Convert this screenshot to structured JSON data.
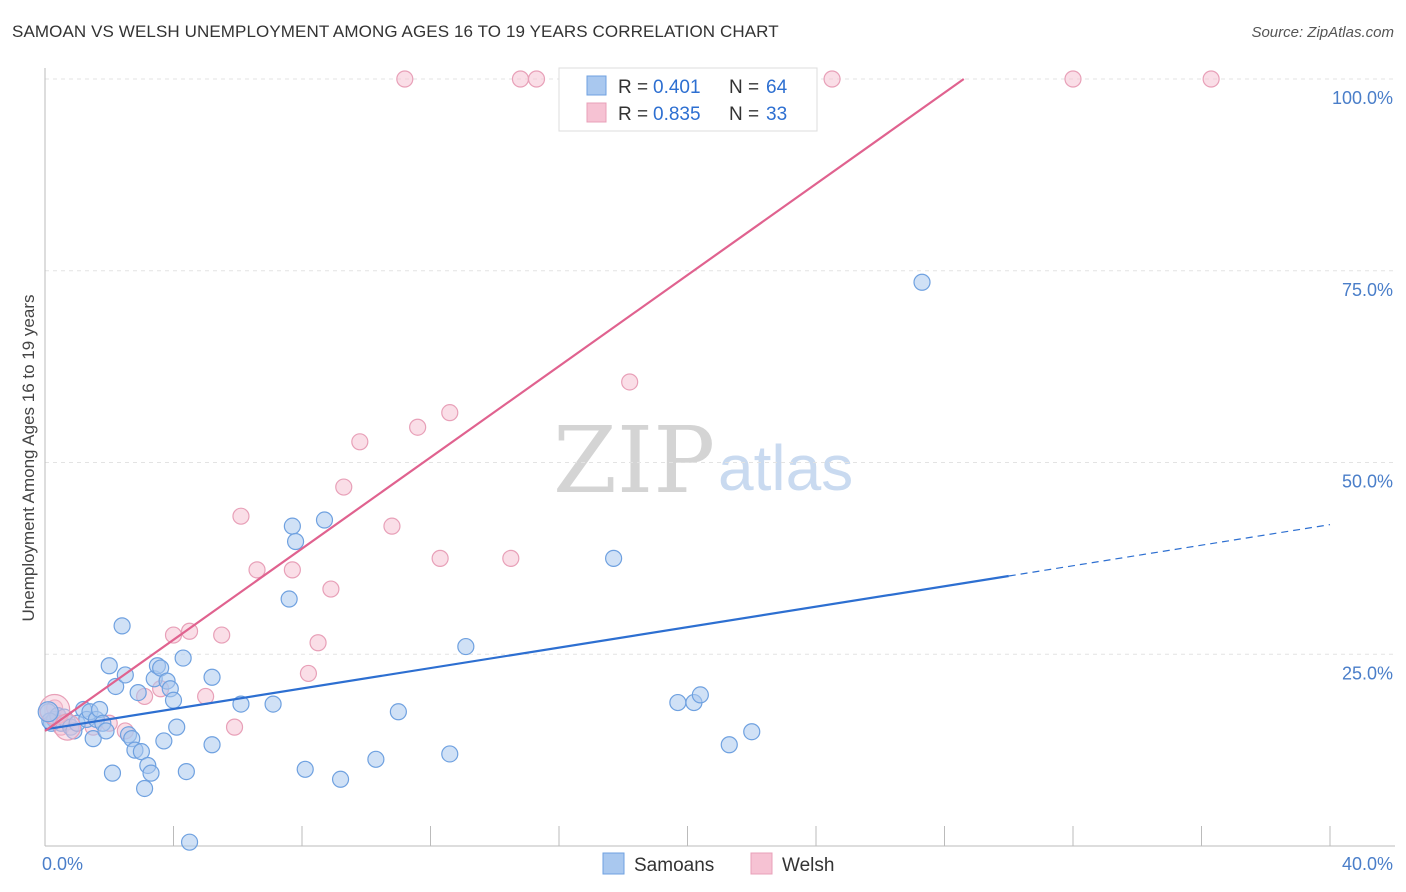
{
  "title": "SAMOAN VS WELSH UNEMPLOYMENT AMONG AGES 16 TO 19 YEARS CORRELATION CHART",
  "source": "Source: ZipAtlas.com",
  "watermark": {
    "zip": "ZIP",
    "atlas": "atlas"
  },
  "chart_data": {
    "type": "scatter",
    "xlabel": "",
    "ylabel": "Unemployment Among Ages 16 to 19 years",
    "xlim": [
      0,
      40
    ],
    "ylim": [
      0,
      100
    ],
    "x_tick_labels": [
      {
        "value": 0,
        "label": "0.0%"
      },
      {
        "value": 40,
        "label": "40.0%"
      }
    ],
    "y_tick_labels": [
      {
        "value": 25,
        "label": "25.0%"
      },
      {
        "value": 50,
        "label": "50.0%"
      },
      {
        "value": 75,
        "label": "75.0%"
      },
      {
        "value": 100,
        "label": "100.0%"
      }
    ],
    "legend_stats": [
      {
        "r_label": "R =",
        "r_value": "0.401",
        "n_label": "N =",
        "n_value": "64"
      },
      {
        "r_label": "R =",
        "r_value": "0.835",
        "n_label": "N =",
        "n_value": "33"
      }
    ],
    "series": [
      {
        "name": "Samoans",
        "color": "#6fa1e0",
        "fill": "#a9c8ef",
        "line_color": "#2d6fd1",
        "trend": {
          "x0": 0,
          "y0": 15.2,
          "x1": 30.0,
          "y1": 35.2,
          "dash_to_x": 40,
          "dash_to_y": 41.9
        },
        "points": [
          [
            0.1,
            17.5
          ],
          [
            0.2,
            16.0
          ],
          [
            0.3,
            16.5
          ],
          [
            0.4,
            17.0
          ],
          [
            0.5,
            16.0
          ],
          [
            0.6,
            16.8
          ],
          [
            0.7,
            16.2
          ],
          [
            0.8,
            15.5
          ],
          [
            0.9,
            15.0
          ],
          [
            1.0,
            16.0
          ],
          [
            1.2,
            17.8
          ],
          [
            1.3,
            16.5
          ],
          [
            1.4,
            17.5
          ],
          [
            1.5,
            14.0
          ],
          [
            1.6,
            16.5
          ],
          [
            1.7,
            17.8
          ],
          [
            1.8,
            16.0
          ],
          [
            1.9,
            15.0
          ],
          [
            2.0,
            23.5
          ],
          [
            2.1,
            9.5
          ],
          [
            2.2,
            20.8
          ],
          [
            2.4,
            28.7
          ],
          [
            2.5,
            22.3
          ],
          [
            2.6,
            14.5
          ],
          [
            2.7,
            14.0
          ],
          [
            2.8,
            12.5
          ],
          [
            2.9,
            20.0
          ],
          [
            3.0,
            12.3
          ],
          [
            3.1,
            7.5
          ],
          [
            3.2,
            10.5
          ],
          [
            3.3,
            9.5
          ],
          [
            3.4,
            21.8
          ],
          [
            3.5,
            23.5
          ],
          [
            3.6,
            23.2
          ],
          [
            3.7,
            13.7
          ],
          [
            3.8,
            21.5
          ],
          [
            3.9,
            20.5
          ],
          [
            4.0,
            19.0
          ],
          [
            4.1,
            15.5
          ],
          [
            4.3,
            24.5
          ],
          [
            4.4,
            9.7
          ],
          [
            4.5,
            0.5
          ],
          [
            5.2,
            13.2
          ],
          [
            5.2,
            22.0
          ],
          [
            6.1,
            18.5
          ],
          [
            7.1,
            18.5
          ],
          [
            7.6,
            32.2
          ],
          [
            7.7,
            41.7
          ],
          [
            7.8,
            39.7
          ],
          [
            8.1,
            10.0
          ],
          [
            8.7,
            42.5
          ],
          [
            9.2,
            8.7
          ],
          [
            10.3,
            11.3
          ],
          [
            11.0,
            17.5
          ],
          [
            12.6,
            12.0
          ],
          [
            13.1,
            26.0
          ],
          [
            17.7,
            37.5
          ],
          [
            19.7,
            18.7
          ],
          [
            20.2,
            18.7
          ],
          [
            20.4,
            19.7
          ],
          [
            21.3,
            13.2
          ],
          [
            22.0,
            14.9
          ],
          [
            27.3,
            73.5
          ],
          [
            0.15,
            16.3
          ]
        ]
      },
      {
        "name": "Welsh",
        "color": "#e8a0b8",
        "fill": "#f6c2d3",
        "line_color": "#e0628f",
        "trend": {
          "x0": 0,
          "y0": 15.0,
          "x1": 28.6,
          "y1": 100.0
        },
        "points": [
          [
            0.3,
            18.0
          ],
          [
            0.5,
            15.5
          ],
          [
            1.5,
            15.5
          ],
          [
            2.0,
            16.0
          ],
          [
            2.5,
            15.0
          ],
          [
            3.1,
            19.5
          ],
          [
            3.6,
            20.5
          ],
          [
            4.0,
            27.5
          ],
          [
            4.5,
            28.0
          ],
          [
            5.0,
            19.5
          ],
          [
            5.5,
            27.5
          ],
          [
            5.9,
            15.5
          ],
          [
            6.1,
            43.0
          ],
          [
            6.6,
            36.0
          ],
          [
            7.7,
            36.0
          ],
          [
            8.2,
            22.5
          ],
          [
            8.5,
            26.5
          ],
          [
            8.9,
            33.5
          ],
          [
            9.3,
            46.8
          ],
          [
            9.8,
            52.7
          ],
          [
            10.8,
            41.7
          ],
          [
            11.2,
            100.0
          ],
          [
            11.6,
            54.6
          ],
          [
            12.3,
            37.5
          ],
          [
            12.6,
            56.5
          ],
          [
            14.5,
            37.5
          ],
          [
            14.8,
            100.0
          ],
          [
            15.3,
            100.0
          ],
          [
            18.2,
            60.5
          ],
          [
            24.5,
            100.0
          ],
          [
            32.0,
            100.0
          ],
          [
            36.3,
            100.0
          ],
          [
            0.4,
            17.0
          ]
        ]
      }
    ]
  }
}
